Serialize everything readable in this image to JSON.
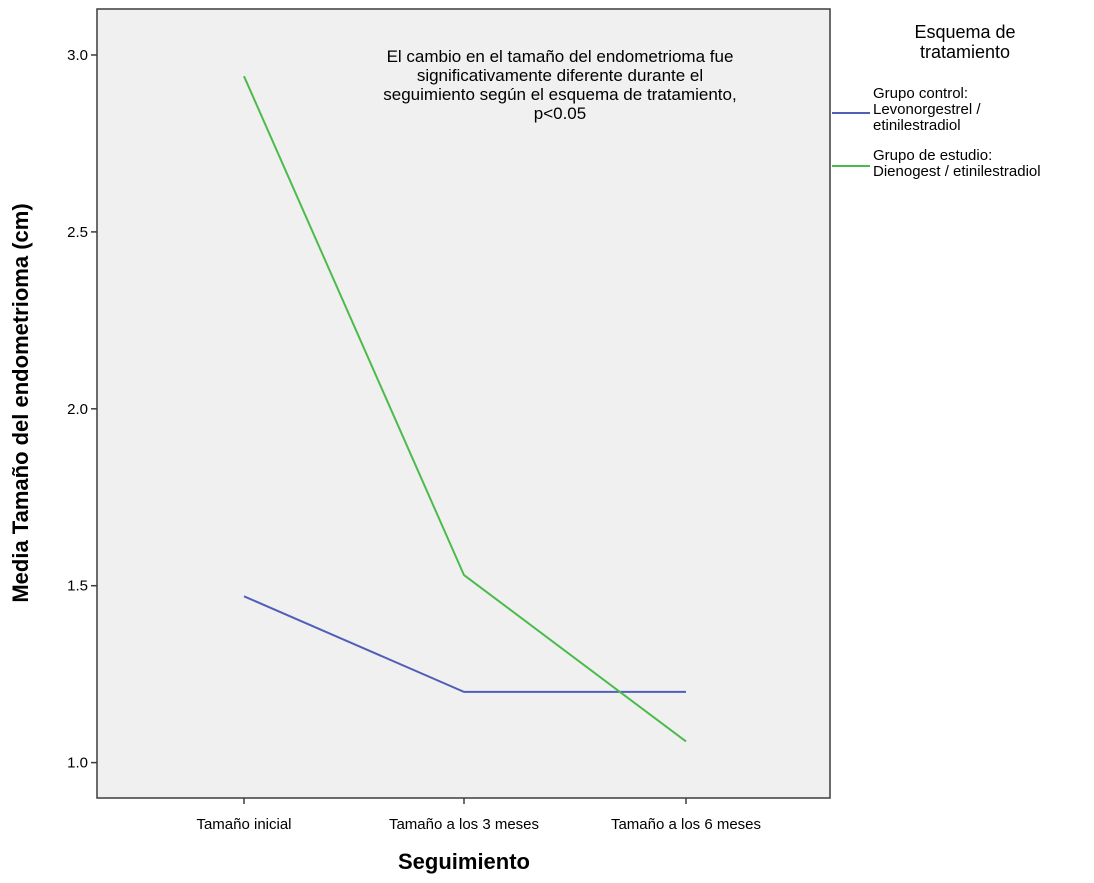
{
  "chart_data": {
    "type": "line",
    "title": "",
    "xlabel": "Seguimiento",
    "ylabel": "Media Tamaño del endometrioma (cm)",
    "categories": [
      "Tamaño inicial",
      "Tamaño a los 3 meses",
      "Tamaño a los 6 meses"
    ],
    "ylim": [
      0.9,
      3.13
    ],
    "yticks": [
      "1.0",
      "1.5",
      "2.0",
      "2.5",
      "3.0"
    ],
    "series": [
      {
        "name": "Grupo control: Levonorgestrel / etinilestradiol",
        "color": "#4f5fb8",
        "values": [
          1.47,
          1.2,
          1.2
        ]
      },
      {
        "name": "Grupo de estudio: Dienogest / etinilestradiol",
        "color": "#4cbb4c",
        "values": [
          2.94,
          1.53,
          1.06
        ]
      }
    ],
    "annotation": [
      "El cambio en el tamaño del endometrioma fue",
      "significativamente diferente durante el",
      "seguimiento según el esquema de tratamiento,",
      "p<0.05"
    ],
    "legend": {
      "title": [
        "Esquema de",
        "tratamiento"
      ],
      "entries": [
        {
          "lines": [
            "Grupo control:",
            "Levonorgestrel /",
            "etinilestradiol"
          ],
          "color": "#4f5fb8"
        },
        {
          "lines": [
            "Grupo de estudio:",
            "Dienogest / etinilestradiol"
          ],
          "color": "#4cbb4c"
        }
      ],
      "placement": "right"
    },
    "grid": false,
    "plot_background": "#f0f0f0"
  }
}
